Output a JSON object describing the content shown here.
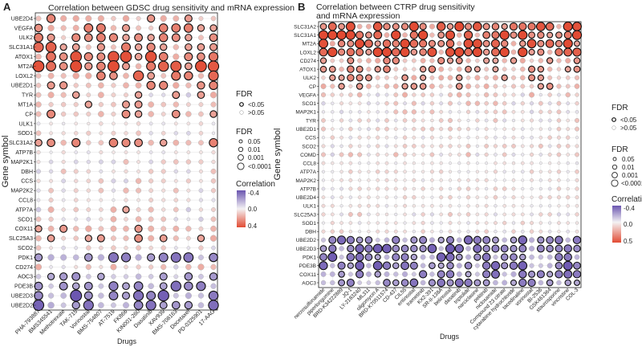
{
  "panels": [
    {
      "letter": "A",
      "title": "Correlation between GDSC drug sensitivity and mRNA expression"
    },
    {
      "letter": "B",
      "title": "Correlation between CTRP drug sensitivity",
      "title2": "and mRNA expression"
    }
  ],
  "colors": {
    "negative": "#6a55b0",
    "neutral": "#f4f2f4",
    "positive": "#e24b33",
    "grid": "#dcdcdc"
  },
  "chart_data": [
    {
      "type": "bubble-heatmap",
      "panel": "A",
      "title": "Correlation between GDSC drug sensitivity and mRNA expression",
      "xlabel": "Drugs",
      "ylabel": "Gene symbol",
      "genes": [
        "UBE2D4",
        "VEGFA",
        "ULK2",
        "SLC31A1",
        "ATOX1",
        "MT2A",
        "LOXL2",
        "UBE2D1",
        "TYR",
        "MT1A",
        "CP",
        "ULK1",
        "SOD1",
        "SLC31A2",
        "ATP7B",
        "MAP2K1",
        "DBH",
        "CCS",
        "MAP2K2",
        "CCL8",
        "ATP7A",
        "SCO1",
        "COX11",
        "SLC25A3",
        "SCO2",
        "PDK1",
        "CD274",
        "AOC3",
        "PDE3B",
        "UBE2D3",
        "UBE2D2"
      ],
      "drugs": [
        "PHA-793887",
        "BMS345541",
        "Methotrexate",
        "TAK-715",
        "Vorinostat",
        "BMS-754807",
        "AT-7519",
        "FK866",
        "KIN001-260",
        "Dasatinib",
        "XAV939",
        "BMS-708163",
        "Docetaxel",
        "PD-0325901",
        "17-AAG"
      ],
      "cor_range": [
        -0.4,
        0.4
      ],
      "legend": {
        "fdr_title": "FDR",
        "fdr_binary": [
          "<0.05",
          ">0.05"
        ],
        "fdr_sizes": [
          "0.05",
          "0.01",
          "0.001",
          "<0.0001"
        ],
        "cor_title": "Correlation",
        "cor_ticks": [
          "-0.4",
          "0.0",
          "0.4"
        ]
      }
    },
    {
      "type": "bubble-heatmap",
      "panel": "B",
      "title": "Correlation between CTRP drug sensitivity and mRNA expression",
      "xlabel": "Drugs",
      "ylabel": "Gene symbol",
      "genes": [
        "SLC31A2",
        "SLC31A1",
        "MT2A",
        "LOXL2",
        "CD274",
        "ATOX1",
        "ULK2",
        "CP",
        "VEGFA",
        "SCO1",
        "MAP2K1",
        "TYR",
        "UBE2D1",
        "CCS",
        "SCO2",
        "COMD",
        "CCL8",
        "ATP7A",
        "MAP2K2",
        "ATP7B",
        "UBE2D4",
        "ULK1",
        "SLC25A3",
        "SOD1",
        "DBH",
        "UBE2D2",
        "UBE2D3",
        "PDK1",
        "PDE3B",
        "COX11",
        "AOC3"
      ],
      "drugs": [
        "necrosulfonamide",
        "piperlongumine",
        "BRD-K34222889",
        "JQ-1",
        "LY-2183240",
        "ML311",
        "oligomycin A",
        "BRD-K70511574",
        "CD-437",
        "CIL55",
        "entinostat",
        "trametinib",
        "KX2-391",
        "SR-II-138A",
        "belinostat",
        "dasatinib",
        "triptolide",
        "narciclasine",
        "pelitinib",
        "niclosamide",
        "Compound 23 citrate",
        "cytarabine hydrochloride",
        "tacedinaline",
        "vorinostat",
        "BI-2536",
        "GSK461364",
        "staurosporine",
        "vincristine",
        "COL-3"
      ],
      "cor_range": [
        -0.4,
        0.5
      ],
      "legend": {
        "fdr_title": "FDR",
        "fdr_binary": [
          "<0.05",
          ">0.05"
        ],
        "fdr_sizes": [
          "0.05",
          "0.01",
          "0.001",
          "<0.0001"
        ],
        "cor_title": "Correlation",
        "cor_ticks": [
          "-0.4",
          "0.0",
          "0.5"
        ]
      }
    }
  ]
}
